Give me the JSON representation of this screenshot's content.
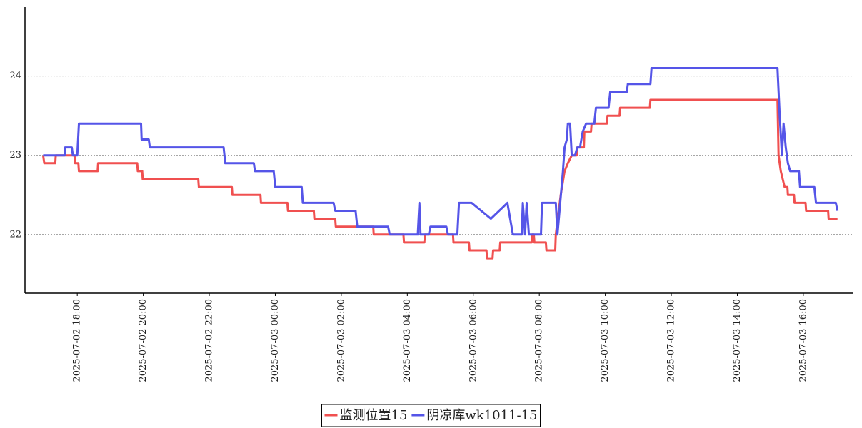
{
  "chart_data": {
    "type": "line",
    "xlim": [
      "2025-07-02 16:25",
      "2025-07-03 17:31"
    ],
    "ylim": [
      21.26,
      24.87
    ],
    "xticks": [
      "2025-07-02 18:00",
      "2025-07-02 20:00",
      "2025-07-02 22:00",
      "2025-07-03 00:00",
      "2025-07-03 02:00",
      "2025-07-03 04:00",
      "2025-07-03 06:00",
      "2025-07-03 08:00",
      "2025-07-03 10:00",
      "2025-07-03 12:00",
      "2025-07-03 14:00",
      "2025-07-03 16:00"
    ],
    "yticks": [
      22,
      23,
      24
    ],
    "grid": true,
    "legend": "bottom",
    "series": [
      {
        "name": "监测位置15",
        "color": "#f05050",
        "x": [
          "2025-07-02 16:58",
          "2025-07-02 17:00",
          "2025-07-02 17:20",
          "2025-07-02 17:21",
          "2025-07-02 17:55",
          "2025-07-02 17:56",
          "2025-07-02 18:02",
          "2025-07-02 18:03",
          "2025-07-02 18:37",
          "2025-07-02 18:38",
          "2025-07-02 19:49",
          "2025-07-02 19:50",
          "2025-07-02 19:58",
          "2025-07-02 19:59",
          "2025-07-02 21:40",
          "2025-07-02 21:41",
          "2025-07-02 22:41",
          "2025-07-02 22:42",
          "2025-07-02 23:33",
          "2025-07-02 23:34",
          "2025-07-03 00:22",
          "2025-07-03 00:23",
          "2025-07-03 01:10",
          "2025-07-03 01:11",
          "2025-07-03 01:49",
          "2025-07-03 01:50",
          "2025-07-03 02:58",
          "2025-07-03 02:59",
          "2025-07-03 03:53",
          "2025-07-03 03:54",
          "2025-07-03 04:31",
          "2025-07-03 04:32",
          "2025-07-03 05:23",
          "2025-07-03 05:24",
          "2025-07-03 05:52",
          "2025-07-03 05:53",
          "2025-07-03 06:24",
          "2025-07-03 06:25",
          "2025-07-03 06:35",
          "2025-07-03 06:36",
          "2025-07-03 06:48",
          "2025-07-03 06:49",
          "2025-07-03 07:46",
          "2025-07-03 07:47",
          "2025-07-03 07:50",
          "2025-07-03 07:51",
          "2025-07-03 08:12",
          "2025-07-03 08:13",
          "2025-07-03 08:29",
          "2025-07-03 08:30",
          "2025-07-03 08:39",
          "2025-07-03 08:46",
          "2025-07-03 08:52",
          "2025-07-03 08:59",
          "2025-07-03 09:08",
          "2025-07-03 09:09",
          "2025-07-03 09:21",
          "2025-07-03 09:22",
          "2025-07-03 09:34",
          "2025-07-03 09:35",
          "2025-07-03 10:03",
          "2025-07-03 10:04",
          "2025-07-03 10:26",
          "2025-07-03 10:27",
          "2025-07-03 11:21",
          "2025-07-03 11:22",
          "2025-07-03 15:13",
          "2025-07-03 15:15",
          "2025-07-03 15:19",
          "2025-07-03 15:26",
          "2025-07-03 15:31",
          "2025-07-03 15:32",
          "2025-07-03 15:43",
          "2025-07-03 15:44",
          "2025-07-03 16:04",
          "2025-07-03 16:05",
          "2025-07-03 16:45",
          "2025-07-03 16:46",
          "2025-07-03 17:02"
        ],
        "values": [
          23.0,
          22.9,
          22.9,
          23.0,
          23.0,
          22.9,
          22.9,
          22.8,
          22.8,
          22.9,
          22.9,
          22.8,
          22.8,
          22.7,
          22.7,
          22.6,
          22.6,
          22.5,
          22.5,
          22.4,
          22.4,
          22.3,
          22.3,
          22.2,
          22.2,
          22.1,
          22.1,
          22.0,
          22.0,
          21.9,
          21.9,
          22.0,
          22.0,
          21.9,
          21.9,
          21.8,
          21.8,
          21.7,
          21.7,
          21.8,
          21.8,
          21.9,
          21.9,
          22.0,
          22.0,
          21.9,
          21.9,
          21.8,
          21.8,
          22.0,
          22.5,
          22.8,
          22.9,
          23.0,
          23.0,
          23.1,
          23.1,
          23.3,
          23.3,
          23.4,
          23.4,
          23.5,
          23.5,
          23.6,
          23.6,
          23.7,
          23.7,
          23.0,
          22.8,
          22.6,
          22.6,
          22.5,
          22.5,
          22.4,
          22.4,
          22.3,
          22.3,
          22.2,
          22.2
        ]
      },
      {
        "name": "阴凉库wk1011-15",
        "color": "#5555e8",
        "x": [
          "2025-07-02 16:58",
          "2025-07-02 17:37",
          "2025-07-02 17:38",
          "2025-07-02 17:50",
          "2025-07-02 17:52",
          "2025-07-02 18:00",
          "2025-07-02 18:03",
          "2025-07-02 19:56",
          "2025-07-02 19:57",
          "2025-07-02 20:10",
          "2025-07-02 20:12",
          "2025-07-02 22:26",
          "2025-07-02 22:29",
          "2025-07-02 23:21",
          "2025-07-02 23:23",
          "2025-07-02 23:57",
          "2025-07-03 00:00",
          "2025-07-03 00:48",
          "2025-07-03 00:50",
          "2025-07-03 01:46",
          "2025-07-03 01:49",
          "2025-07-03 02:26",
          "2025-07-03 02:29",
          "2025-07-03 03:25",
          "2025-07-03 03:28",
          "2025-07-03 04:19",
          "2025-07-03 04:22",
          "2025-07-03 04:24",
          "2025-07-03 04:39",
          "2025-07-03 04:42",
          "2025-07-03 05:11",
          "2025-07-03 05:14",
          "2025-07-03 05:31",
          "2025-07-03 05:34",
          "2025-07-03 05:57",
          "2025-07-03 06:32",
          "2025-07-03 07:02",
          "2025-07-03 07:12",
          "2025-07-03 07:28",
          "2025-07-03 07:30",
          "2025-07-03 07:34",
          "2025-07-03 07:37",
          "2025-07-03 07:41",
          "2025-07-03 08:03",
          "2025-07-03 08:05",
          "2025-07-03 08:30",
          "2025-07-03 08:33",
          "2025-07-03 08:43",
          "2025-07-03 08:46",
          "2025-07-03 08:50",
          "2025-07-03 08:52",
          "2025-07-03 08:56",
          "2025-07-03 08:59",
          "2025-07-03 09:05",
          "2025-07-03 09:09",
          "2025-07-03 09:14",
          "2025-07-03 09:19",
          "2025-07-03 09:25",
          "2025-07-03 09:40",
          "2025-07-03 09:43",
          "2025-07-03 10:06",
          "2025-07-03 10:09",
          "2025-07-03 10:39",
          "2025-07-03 10:41",
          "2025-07-03 11:22",
          "2025-07-03 11:24",
          "2025-07-03 15:13",
          "2025-07-03 15:17",
          "2025-07-03 15:21",
          "2025-07-03 15:24",
          "2025-07-03 15:28",
          "2025-07-03 15:32",
          "2025-07-03 15:36",
          "2025-07-03 15:52",
          "2025-07-03 15:54",
          "2025-07-03 16:20",
          "2025-07-03 16:23",
          "2025-07-03 16:59",
          "2025-07-03 17:02"
        ],
        "values": [
          23.0,
          23.0,
          23.1,
          23.1,
          23.0,
          23.0,
          23.4,
          23.4,
          23.2,
          23.2,
          23.1,
          23.1,
          22.9,
          22.9,
          22.8,
          22.8,
          22.6,
          22.6,
          22.4,
          22.4,
          22.3,
          22.3,
          22.1,
          22.1,
          22.0,
          22.0,
          22.4,
          22.0,
          22.0,
          22.1,
          22.1,
          22.0,
          22.0,
          22.4,
          22.4,
          22.2,
          22.4,
          22.0,
          22.0,
          22.4,
          22.0,
          22.4,
          22.0,
          22.0,
          22.4,
          22.4,
          22.0,
          22.8,
          23.1,
          23.2,
          23.4,
          23.4,
          23.0,
          23.0,
          23.1,
          23.1,
          23.3,
          23.4,
          23.4,
          23.6,
          23.6,
          23.8,
          23.8,
          23.9,
          23.9,
          24.1,
          24.1,
          23.5,
          23.0,
          23.4,
          23.1,
          22.9,
          22.8,
          22.8,
          22.6,
          22.6,
          22.4,
          22.4,
          22.3
        ]
      }
    ]
  }
}
